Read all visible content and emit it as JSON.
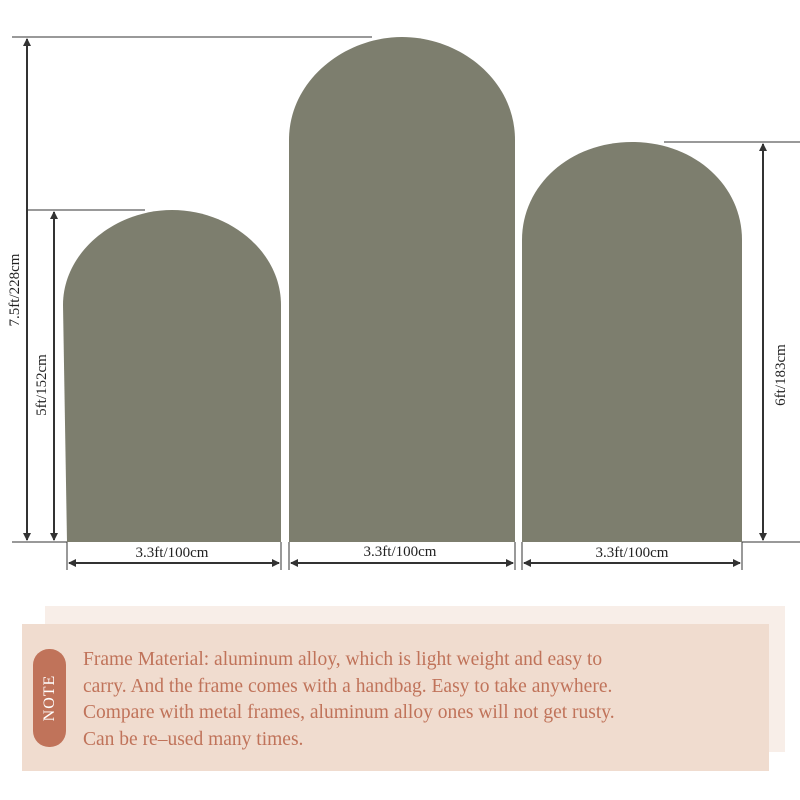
{
  "colors": {
    "arch": "#7d7e6e",
    "note_bg": "#f0dccf",
    "accent": "#c0735a"
  },
  "dimensions": {
    "left_height": "5ft/152cm",
    "middle_height": "7.5ft/228cm",
    "right_height": "6ft/183cm",
    "left_width": "3.3ft/100cm",
    "middle_width": "3.3ft/100cm",
    "right_width": "3.3ft/100cm"
  },
  "note": {
    "badge": "NOTE",
    "lines": [
      "Frame Material: aluminum alloy, which is light weight and easy to",
      "carry. And the frame comes with a handbag. Easy to take anywhere.",
      "Compare with metal frames, aluminum alloy ones will not get rusty.",
      "Can be  re‒used many times."
    ]
  }
}
